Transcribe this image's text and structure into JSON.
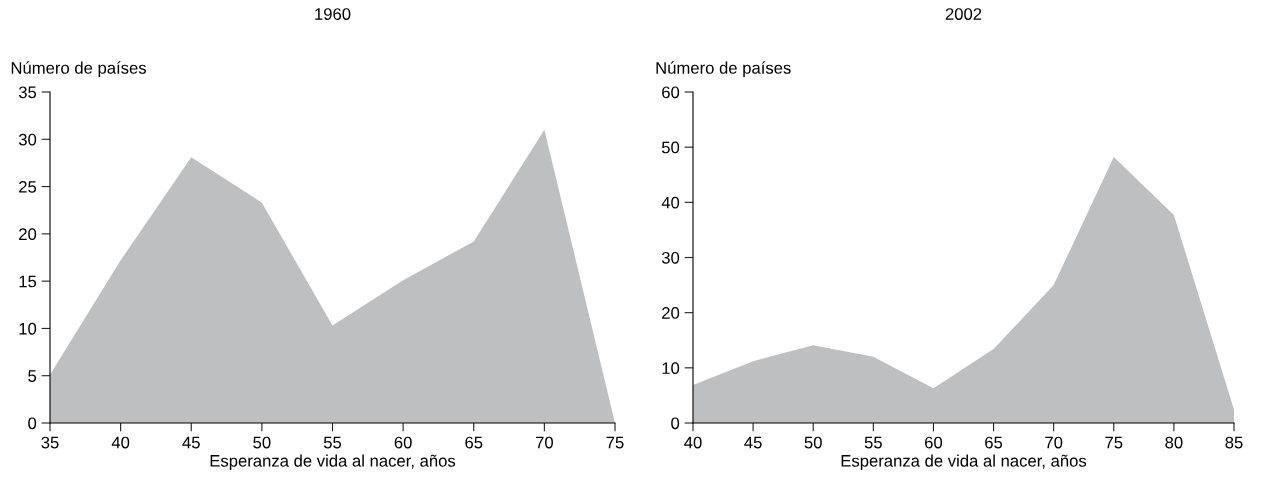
{
  "chart_data": [
    {
      "type": "area",
      "title": "1960",
      "xlabel": "Esperanza de vida al nacer, años",
      "ylabel": "Número de países",
      "x": [
        35,
        40,
        45,
        50,
        55,
        60,
        65,
        70,
        75
      ],
      "series": [
        {
          "color": "#bebfc1",
          "values": [
            5.1,
            17.2,
            28.1,
            23.3,
            10.3,
            15.1,
            19.2,
            31,
            0
          ]
        }
      ],
      "xlim": [
        35,
        75
      ],
      "xticks": [
        35,
        40,
        45,
        50,
        55,
        60,
        65,
        70,
        75
      ],
      "ylim": [
        0,
        35
      ],
      "yticks": [
        0,
        5,
        10,
        15,
        20,
        25,
        30,
        35
      ],
      "grid": false
    },
    {
      "type": "area",
      "title": "2002",
      "xlabel": "Esperanza de vida al nacer, años",
      "ylabel": "Número de países",
      "x": [
        40,
        45,
        50,
        55,
        60,
        65,
        70,
        75,
        80,
        85
      ],
      "series": [
        {
          "color": "#bebfc1",
          "values": [
            6.9,
            11.2,
            14.1,
            12,
            6.3,
            13.4,
            25,
            48.2,
            37.7,
            2.4
          ]
        }
      ],
      "xlim": [
        40,
        85
      ],
      "xticks": [
        40,
        45,
        50,
        55,
        60,
        65,
        70,
        75,
        80,
        85
      ],
      "ylim": [
        0,
        60
      ],
      "yticks": [
        0,
        10,
        20,
        30,
        40,
        50,
        60
      ],
      "grid": false
    }
  ]
}
